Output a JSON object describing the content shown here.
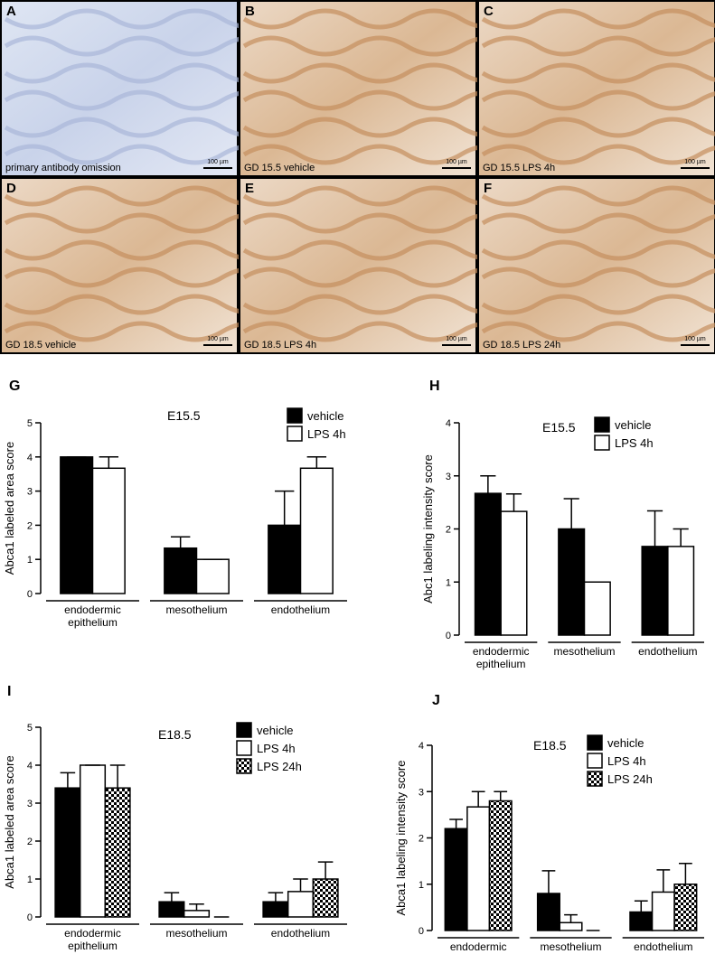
{
  "image_panels": [
    {
      "letter": "A",
      "caption": "primary antibody omission",
      "scale": "100 µm"
    },
    {
      "letter": "B",
      "caption": "GD 15.5 vehicle",
      "scale": "100 µm"
    },
    {
      "letter": "C",
      "caption": "GD 15.5 LPS 4h",
      "scale": "100 µm"
    },
    {
      "letter": "D",
      "caption": "GD 18.5 vehicle",
      "scale": "100 µm"
    },
    {
      "letter": "E",
      "caption": "GD 18.5 LPS 4h",
      "scale": "100 µm"
    },
    {
      "letter": "F",
      "caption": "GD 18.5 LPS 24h",
      "scale": "100 µm"
    }
  ],
  "chart_data": [
    {
      "type": "bar",
      "panel_label": "G",
      "title": "E15.5",
      "y_label": "Abca1 labeled area score",
      "categories": [
        "endodermic\nepithelium",
        "mesothelium",
        "endothelium"
      ],
      "ylim": [
        0,
        5
      ],
      "yticks": [
        0,
        1,
        2,
        3,
        4,
        5
      ],
      "series": [
        {
          "name": "vehicle",
          "color": "#000000",
          "values": [
            4,
            1.33,
            2
          ],
          "errors": [
            0,
            0.33,
            1
          ]
        },
        {
          "name": "LPS 4h",
          "color": "#ffffff",
          "values": [
            3.67,
            1,
            3.67
          ],
          "errors": [
            0.33,
            0,
            0.33
          ]
        }
      ]
    },
    {
      "type": "bar",
      "panel_label": "H",
      "title": "E15.5",
      "y_label": "Abc1 labeling intensity score",
      "categories": [
        "endodermic\nepithelium",
        "mesothelium",
        "endothelium"
      ],
      "ylim": [
        0,
        4
      ],
      "yticks": [
        0,
        1,
        2,
        3,
        4
      ],
      "series": [
        {
          "name": "vehicle",
          "color": "#000000",
          "values": [
            2.67,
            2,
            1.67
          ],
          "errors": [
            0.33,
            0.57,
            0.67
          ]
        },
        {
          "name": "LPS 4h",
          "color": "#ffffff",
          "values": [
            2.33,
            1,
            1.67
          ],
          "errors": [
            0.33,
            0,
            0.33
          ]
        }
      ]
    },
    {
      "type": "bar",
      "panel_label": "I",
      "title": "E18.5",
      "y_label": "Abca1 labeled area score",
      "categories": [
        "endodermic\nepithelium",
        "mesothelium",
        "endothelium"
      ],
      "ylim": [
        0,
        5
      ],
      "yticks": [
        0,
        1,
        2,
        3,
        4,
        5
      ],
      "series": [
        {
          "name": "vehicle",
          "color": "#000000",
          "values": [
            3.4,
            0.4,
            0.4
          ],
          "errors": [
            0.4,
            0.24,
            0.24
          ]
        },
        {
          "name": "LPS 4h",
          "color": "#ffffff",
          "values": [
            4,
            0.17,
            0.67
          ],
          "errors": [
            0,
            0.17,
            0.33
          ]
        },
        {
          "name": "LPS 24h",
          "color": "#000000",
          "pattern": "checker",
          "values": [
            3.4,
            0,
            1
          ],
          "errors": [
            0.6,
            0,
            0.45
          ]
        }
      ]
    },
    {
      "type": "bar",
      "panel_label": "J",
      "title": "E18.5",
      "y_label": "Abca1 labeling intensity score",
      "categories": [
        "endodermic\nepithelium",
        "mesothelium",
        "endothelium"
      ],
      "ylim": [
        0,
        4
      ],
      "yticks": [
        0,
        1,
        2,
        3,
        4
      ],
      "series": [
        {
          "name": "vehicle",
          "color": "#000000",
          "values": [
            2.2,
            0.8,
            0.4
          ],
          "errors": [
            0.2,
            0.49,
            0.24
          ]
        },
        {
          "name": "LPS 4h",
          "color": "#ffffff",
          "values": [
            2.67,
            0.17,
            0.83
          ],
          "errors": [
            0.33,
            0.17,
            0.48
          ]
        },
        {
          "name": "LPS 24h",
          "color": "#000000",
          "pattern": "checker",
          "values": [
            2.8,
            0,
            1
          ],
          "errors": [
            0.2,
            0,
            0.45
          ]
        }
      ]
    }
  ]
}
